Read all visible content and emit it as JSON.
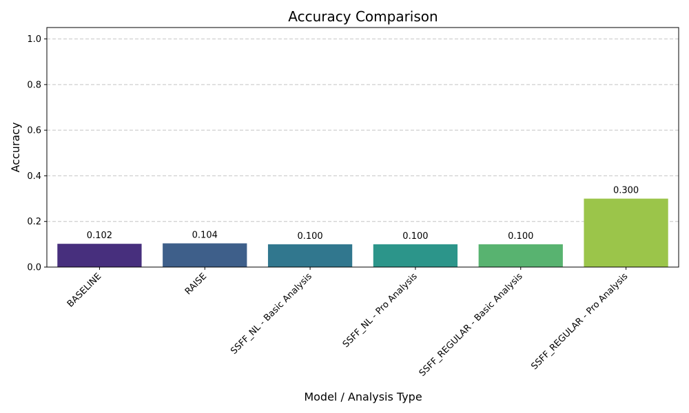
{
  "chart_data": {
    "type": "bar",
    "title": "Accuracy Comparison",
    "xlabel": "Model / Analysis Type",
    "ylabel": "Accuracy",
    "categories": [
      "BASELINE",
      "RAISE",
      "SSFF_NL - Basic Analysis",
      "SSFF_NL - Pro Analysis",
      "SSFF_REGULAR - Basic Analysis",
      "SSFF_REGULAR - Pro Analysis"
    ],
    "values": [
      0.102,
      0.104,
      0.1,
      0.1,
      0.1,
      0.3
    ],
    "value_labels": [
      "0.102",
      "0.104",
      "0.100",
      "0.100",
      "0.100",
      "0.300"
    ],
    "colors": [
      "#472f7d",
      "#3e5f8a",
      "#31778e",
      "#2c958a",
      "#58b370",
      "#9bc54a"
    ],
    "ylim": [
      0,
      1.05
    ],
    "yticks": [
      0.0,
      0.2,
      0.4,
      0.6,
      0.8,
      1.0
    ],
    "ytick_labels": [
      "0.0",
      "0.2",
      "0.4",
      "0.6",
      "0.8",
      "1.0"
    ],
    "grid": "y-dashed",
    "legend": "none"
  }
}
